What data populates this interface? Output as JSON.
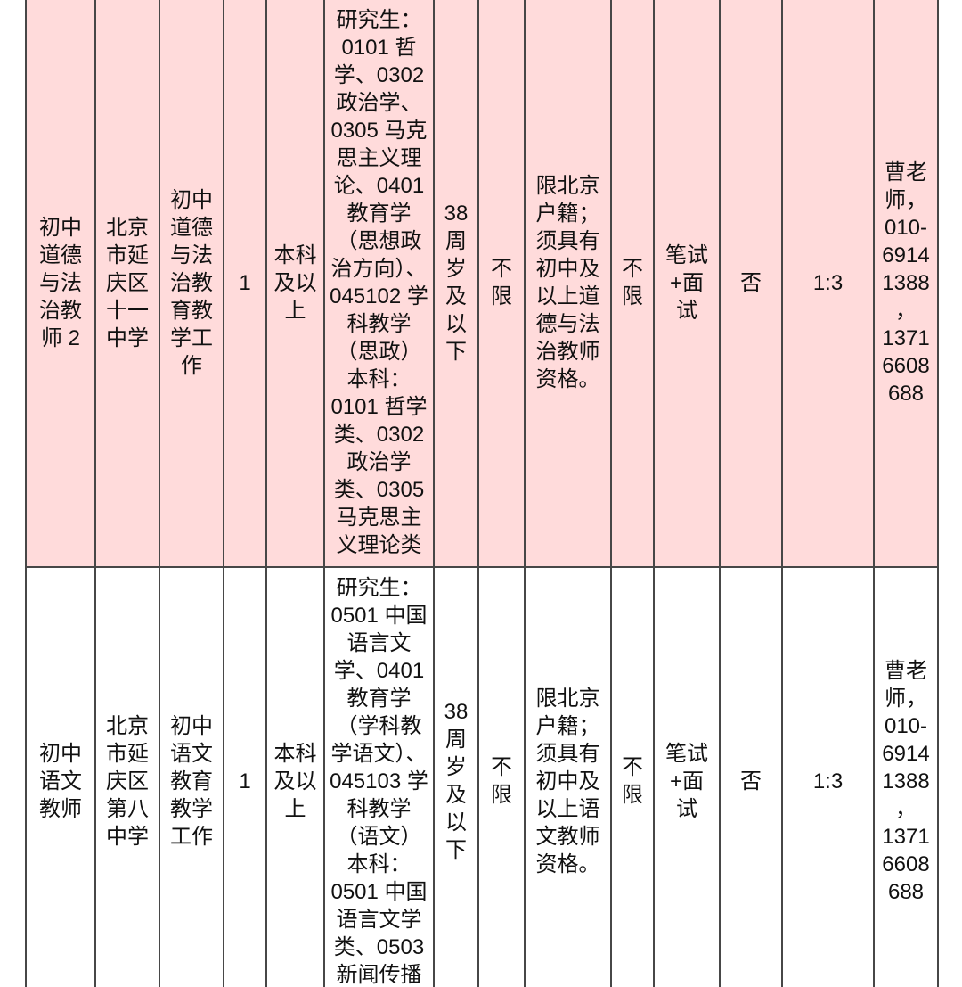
{
  "table": {
    "style": {
      "row1_background": "#ffdbdb",
      "row2_background": "#ffffff",
      "border_color": "#474747"
    },
    "rows": [
      {
        "cells": [
          "初中\n道德\n与法\n治教\n师 2",
          "北京\n市延\n庆区\n十一\n中学",
          "初中\n道德\n与法\n治教\n育教\n学工\n作",
          "1",
          "本科\n及以\n上",
          "研究生：\n0101 哲\n学、0302\n政治学、\n0305 马克\n思主义理\n论、0401\n教育学\n（思想政\n治方向）、\n045102 学\n科教学\n（思政）\n本科：\n0101 哲学\n类、0302\n政治学\n类、0305\n马克思主\n义理论类",
          "38\n周\n岁\n及\n以\n下",
          "不\n限",
          "限北京\n户籍；\n须具有\n初中及\n以上道\n德与法\n治教师\n资格。",
          "不\n限",
          "笔试\n+面\n试",
          "否",
          "1:3",
          "曹老\n师，\n010-\n6914\n1388\n，\n1371\n6608\n688"
        ]
      },
      {
        "cells": [
          "初中\n语文\n教师",
          "北京\n市延\n庆区\n第八\n中学",
          "初中\n语文\n教育\n教学\n工作",
          "1",
          "本科\n及以\n上",
          "研究生：\n0501 中国\n语言文\n学、0401\n教育学\n（学科教\n学语文）、\n045103 学\n科教学\n（语文）\n本科：\n0501 中国\n语言文学\n类、0503\n新闻传播",
          "38\n周\n岁\n及\n以\n下",
          "不\n限",
          "限北京\n户籍；\n须具有\n初中及\n以上语\n文教师\n资格。",
          "不\n限",
          "笔试\n+面\n试",
          "否",
          "1:3",
          "曹老\n师，\n010-\n6914\n1388\n，\n1371\n6608\n688"
        ]
      }
    ]
  }
}
